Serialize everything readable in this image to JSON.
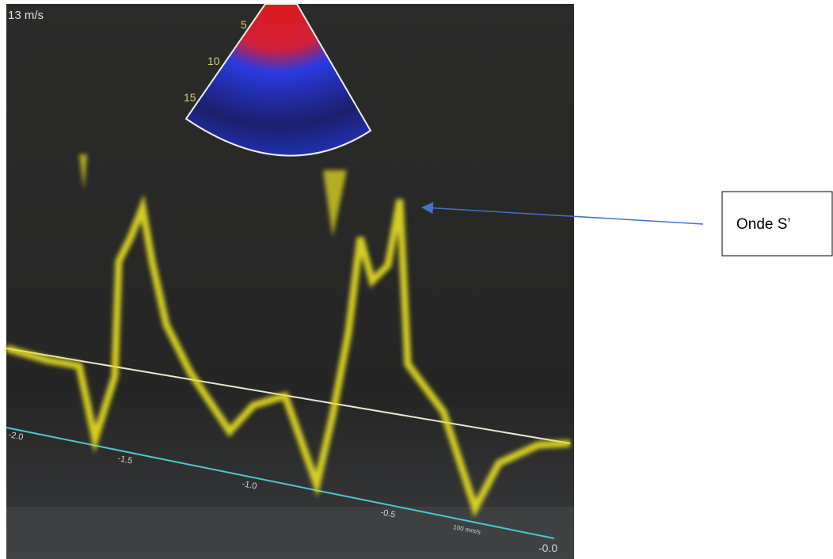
{
  "screen": {
    "velocity_label": "13 m/s",
    "depth_labels": [
      "5",
      "10",
      "15"
    ],
    "time_axis_labels": [
      "-2.0",
      "-1.5",
      "-1.0",
      "-0.5",
      "-0.0"
    ],
    "sweep_speed": "100 mm/s"
  },
  "annotation": {
    "label": "Onde S’"
  }
}
